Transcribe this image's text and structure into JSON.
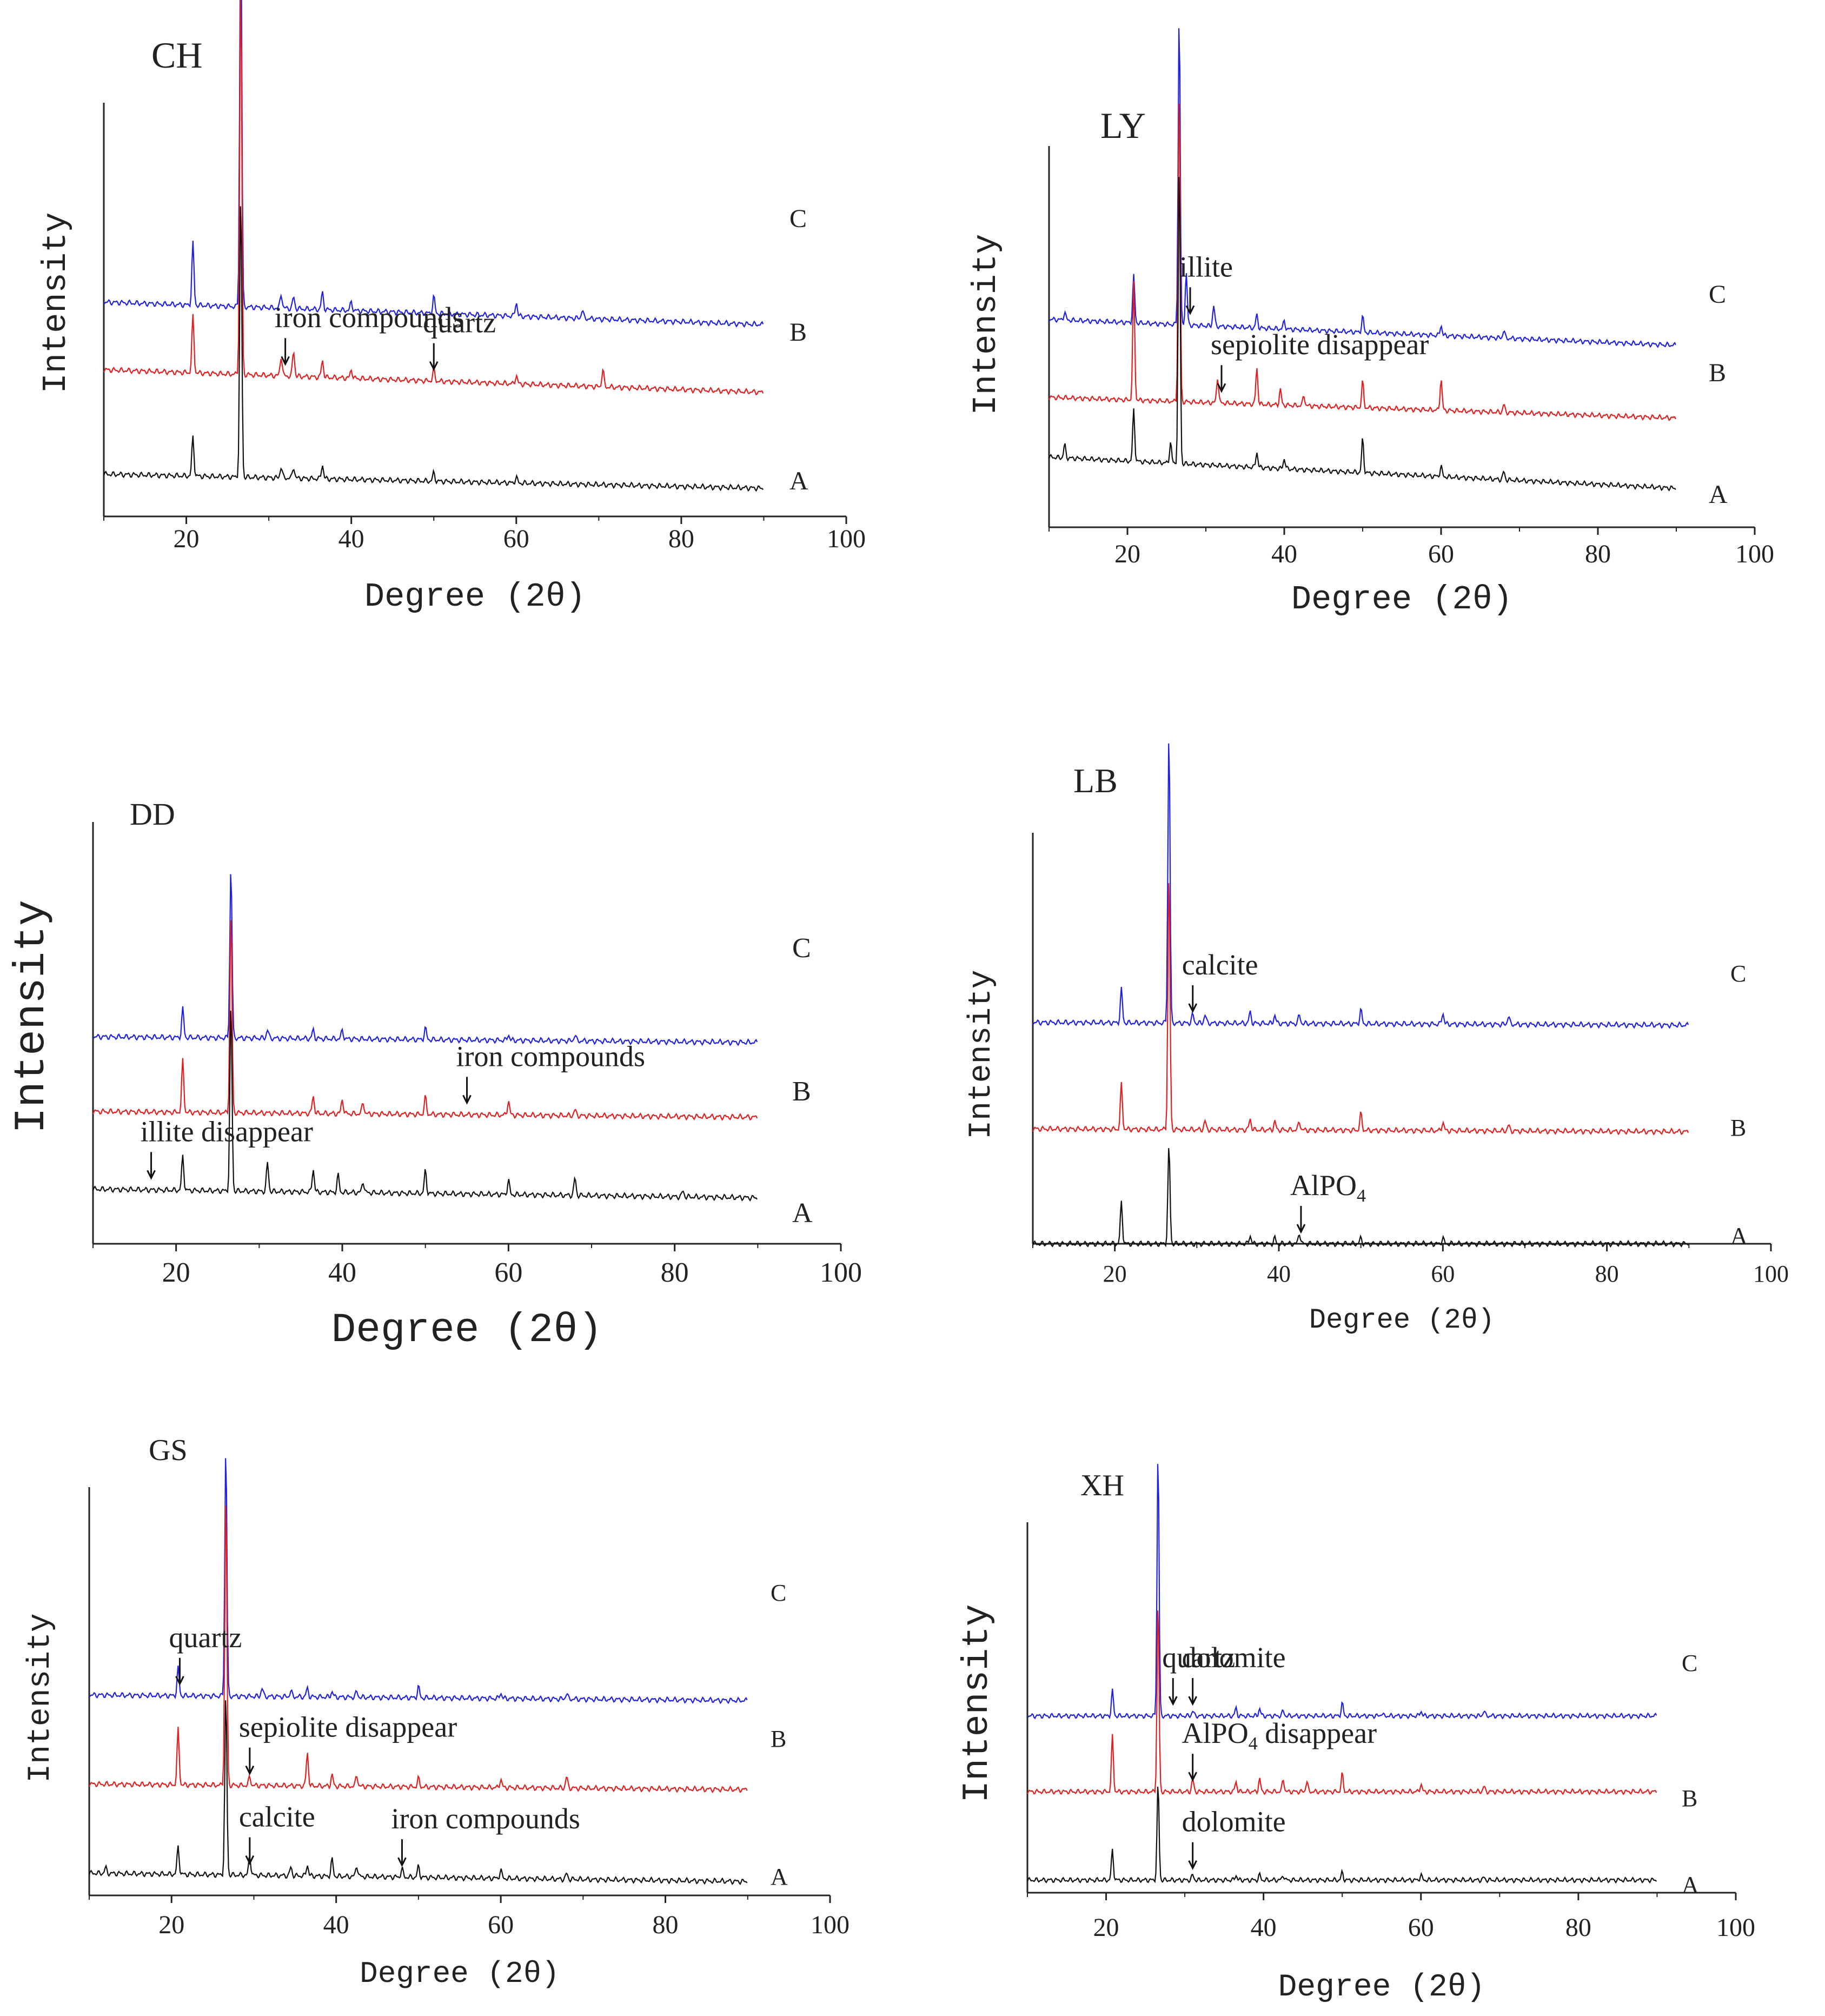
{
  "colors": {
    "C": "#2020e0",
    "B": "#e02020",
    "A": "#111111",
    "axis": "#222222"
  },
  "shared_axes": {
    "xlabel": "Degree (2θ)",
    "ylabel": "Intensity",
    "xticks": [
      "20",
      "40",
      "60",
      "80",
      "100"
    ],
    "trace_labels": [
      "C",
      "B",
      "A"
    ]
  },
  "chart_data": [
    {
      "id": "CH",
      "type": "line",
      "title": "CH",
      "xlim": [
        10,
        100
      ],
      "yticks_shown": false,
      "x_range_data": [
        10,
        90
      ],
      "series": [
        {
          "name": "C",
          "baseline": 68,
          "tilt": 8,
          "peaks": [
            [
              20.8,
              22
            ],
            [
              26.6,
              140
            ],
            [
              31.5,
              5
            ],
            [
              33,
              4
            ],
            [
              36.5,
              6
            ],
            [
              40,
              3
            ],
            [
              50,
              6
            ],
            [
              60,
              5
            ],
            [
              68,
              3
            ]
          ]
        },
        {
          "name": "B",
          "baseline": 44,
          "tilt": 8,
          "peaks": [
            [
              20.8,
              20
            ],
            [
              26.6,
              140
            ],
            [
              31.5,
              7
            ],
            [
              33,
              9
            ],
            [
              36.5,
              6
            ],
            [
              40,
              3
            ],
            [
              50,
              4
            ],
            [
              60,
              3
            ],
            [
              70.5,
              6
            ]
          ]
        },
        {
          "name": "A",
          "baseline": 10,
          "tilt": 5,
          "peaks": [
            [
              20.8,
              14
            ],
            [
              26.6,
              100
            ],
            [
              31.5,
              4
            ],
            [
              33,
              4
            ],
            [
              36.5,
              5
            ],
            [
              50,
              3
            ],
            [
              60,
              2
            ]
          ]
        }
      ],
      "annotations": [
        {
          "text": "iron compounds",
          "x": 32,
          "series": "B"
        },
        {
          "text": "quartz",
          "x": 50,
          "series": "B"
        }
      ]
    },
    {
      "id": "LY",
      "type": "line",
      "title": "LY",
      "xlim": [
        10,
        100
      ],
      "yticks_shown": false,
      "x_range_data": [
        10,
        90
      ],
      "series": [
        {
          "name": "C",
          "baseline": 70,
          "tilt": 10,
          "peaks": [
            [
              12,
              3
            ],
            [
              20.8,
              18
            ],
            [
              26.6,
              120
            ],
            [
              27.5,
              20
            ],
            [
              31,
              8
            ],
            [
              36.5,
              5
            ],
            [
              40,
              3
            ],
            [
              50,
              6
            ],
            [
              60,
              4
            ],
            [
              68,
              3
            ]
          ]
        },
        {
          "name": "B",
          "baseline": 42,
          "tilt": 8,
          "peaks": [
            [
              20.8,
              45
            ],
            [
              26.6,
              120
            ],
            [
              31.5,
              10
            ],
            [
              36.5,
              14
            ],
            [
              39.5,
              6
            ],
            [
              42.5,
              4
            ],
            [
              50,
              10
            ],
            [
              60,
              12
            ],
            [
              68,
              3
            ]
          ]
        },
        {
          "name": "A",
          "baseline": 15,
          "tilt": 12,
          "peaks": [
            [
              12,
              5
            ],
            [
              20.8,
              20
            ],
            [
              25.5,
              8
            ],
            [
              26.6,
              115
            ],
            [
              36.5,
              6
            ],
            [
              40,
              4
            ],
            [
              50,
              13
            ],
            [
              60,
              4
            ],
            [
              68,
              3
            ]
          ]
        }
      ],
      "annotations": [
        {
          "text": "illite",
          "x": 28,
          "series": "C"
        },
        {
          "text": "sepiolite disappear",
          "x": 32,
          "series": "B"
        }
      ]
    },
    {
      "id": "DD",
      "type": "line",
      "title": "DD",
      "xlim": [
        10,
        100
      ],
      "yticks_shown": false,
      "x_range_data": [
        10,
        90
      ],
      "series": [
        {
          "name": "C",
          "baseline": 70,
          "tilt": 2,
          "peaks": [
            [
              20.8,
              10
            ],
            [
              26.6,
              60
            ],
            [
              31,
              3
            ],
            [
              36.5,
              3
            ],
            [
              40,
              3
            ],
            [
              50,
              4
            ],
            [
              60,
              2
            ],
            [
              68,
              2
            ]
          ]
        },
        {
          "name": "B",
          "baseline": 44,
          "tilt": 2,
          "peaks": [
            [
              20.8,
              18
            ],
            [
              26.6,
              70
            ],
            [
              36.5,
              6
            ],
            [
              40,
              5
            ],
            [
              42.5,
              4
            ],
            [
              50,
              6
            ],
            [
              60,
              5
            ],
            [
              68,
              2
            ]
          ]
        },
        {
          "name": "A",
          "baseline": 16,
          "tilt": 3,
          "peaks": [
            [
              20.8,
              12
            ],
            [
              26.6,
              65
            ],
            [
              31,
              10
            ],
            [
              36.5,
              8
            ],
            [
              39.5,
              6
            ],
            [
              42.5,
              4
            ],
            [
              50,
              8
            ],
            [
              60,
              5
            ],
            [
              68,
              6
            ],
            [
              81,
              2
            ]
          ]
        }
      ],
      "annotations": [
        {
          "text": "iron compounds",
          "x": 55,
          "series": "B"
        },
        {
          "text": "illite disappear",
          "x": 17,
          "series": "A"
        }
      ]
    },
    {
      "id": "LB",
      "type": "line",
      "title": "LB",
      "xlim": [
        10,
        100
      ],
      "yticks_shown": false,
      "x_range_data": [
        10,
        90
      ],
      "series": [
        {
          "name": "C",
          "baseline": 78,
          "tilt": 1,
          "peaks": [
            [
              20.8,
              12
            ],
            [
              26.6,
              105
            ],
            [
              29.5,
              3
            ],
            [
              31,
              3
            ],
            [
              36.5,
              4
            ],
            [
              39.5,
              3
            ],
            [
              42.5,
              3
            ],
            [
              50,
              5
            ],
            [
              60,
              4
            ],
            [
              68,
              3
            ]
          ]
        },
        {
          "name": "B",
          "baseline": 40,
          "tilt": 1,
          "peaks": [
            [
              20.8,
              16
            ],
            [
              26.6,
              92
            ],
            [
              31,
              3
            ],
            [
              36.5,
              4
            ],
            [
              39.5,
              3
            ],
            [
              42.5,
              3
            ],
            [
              50,
              6
            ],
            [
              60,
              3
            ],
            [
              68,
              2
            ]
          ]
        },
        {
          "name": "A",
          "baseline": 0,
          "tilt": 0,
          "peaks": [
            [
              20.8,
              15
            ],
            [
              26.6,
              35
            ],
            [
              36.5,
              3
            ],
            [
              39.5,
              2
            ],
            [
              42.5,
              4
            ],
            [
              50,
              2
            ],
            [
              60,
              2
            ]
          ]
        }
      ],
      "annotations": [
        {
          "text": "calcite",
          "x": 29.5,
          "series": "C"
        },
        {
          "text": "AlPO",
          "subscript": "4",
          "x": 42.7,
          "series": "A"
        }
      ]
    },
    {
      "id": "GS",
      "type": "line",
      "title": "GS",
      "xlim": [
        10,
        100
      ],
      "yticks_shown": false,
      "x_range_data": [
        10,
        90
      ],
      "series": [
        {
          "name": "C",
          "baseline": 70,
          "tilt": 2,
          "peaks": [
            [
              20.8,
              10
            ],
            [
              26.6,
              90
            ],
            [
              31,
              3
            ],
            [
              34.5,
              2
            ],
            [
              36.5,
              3
            ],
            [
              39.5,
              2
            ],
            [
              42.5,
              2
            ],
            [
              50,
              4
            ],
            [
              60,
              2
            ],
            [
              68,
              2
            ]
          ]
        },
        {
          "name": "B",
          "baseline": 38,
          "tilt": 2,
          "peaks": [
            [
              20.8,
              20
            ],
            [
              26.6,
              105
            ],
            [
              29.5,
              3
            ],
            [
              36.5,
              12
            ],
            [
              39.5,
              4
            ],
            [
              42.5,
              4
            ],
            [
              50,
              3
            ],
            [
              60,
              3
            ],
            [
              68,
              4
            ]
          ]
        },
        {
          "name": "A",
          "baseline": 5,
          "tilt": 3,
          "peaks": [
            [
              12,
              2
            ],
            [
              20.8,
              10
            ],
            [
              26.6,
              65
            ],
            [
              29.5,
              7
            ],
            [
              34.5,
              3
            ],
            [
              36.5,
              4
            ],
            [
              39.5,
              6
            ],
            [
              42.5,
              4
            ],
            [
              48,
              3
            ],
            [
              50,
              4
            ],
            [
              60,
              3
            ],
            [
              68,
              2
            ]
          ]
        }
      ],
      "annotations": [
        {
          "text": "quartz",
          "x": 21,
          "series": "C"
        },
        {
          "text": "sepiolite disappear",
          "x": 29.5,
          "series": "B"
        },
        {
          "text": "calcite",
          "x": 29.5,
          "series": "A"
        },
        {
          "text": "iron compounds",
          "x": 48,
          "series": "A"
        }
      ]
    },
    {
      "id": "XH",
      "type": "line",
      "title": "XH",
      "xlim": [
        10,
        100
      ],
      "yticks_shown": false,
      "x_range_data": [
        10,
        90
      ],
      "series": [
        {
          "name": "C",
          "baseline": 70,
          "tilt": 0,
          "peaks": [
            [
              20.8,
              10
            ],
            [
              26.6,
              105
            ],
            [
              31,
              2
            ],
            [
              36.5,
              3
            ],
            [
              39.5,
              3
            ],
            [
              42.5,
              2
            ],
            [
              50,
              5
            ],
            [
              55,
              1
            ],
            [
              60,
              2
            ],
            [
              68,
              2
            ]
          ]
        },
        {
          "name": "B",
          "baseline": 40,
          "tilt": 0,
          "peaks": [
            [
              20.8,
              22
            ],
            [
              26.6,
              75
            ],
            [
              31,
              5
            ],
            [
              36.5,
              4
            ],
            [
              39.5,
              5
            ],
            [
              42.5,
              5
            ],
            [
              45.5,
              4
            ],
            [
              50,
              7
            ],
            [
              60,
              3
            ],
            [
              68,
              2
            ]
          ]
        },
        {
          "name": "A",
          "baseline": 5,
          "tilt": 0,
          "peaks": [
            [
              20.8,
              12
            ],
            [
              26.6,
              38
            ],
            [
              31,
              2
            ],
            [
              36.5,
              2
            ],
            [
              39.5,
              2
            ],
            [
              42.5,
              2
            ],
            [
              50,
              3
            ],
            [
              60,
              2
            ],
            [
              68,
              1
            ]
          ]
        }
      ],
      "annotations": [
        {
          "text": "quartz",
          "x": 28.5,
          "series": "C"
        },
        {
          "text": "dolomite",
          "x": 31,
          "series": "C"
        },
        {
          "text": "AlPO",
          "subscript": "4",
          "suffix": "disappear",
          "x": 31,
          "series": "B"
        },
        {
          "text": "dolomite",
          "x": 31,
          "series": "A"
        }
      ]
    }
  ]
}
